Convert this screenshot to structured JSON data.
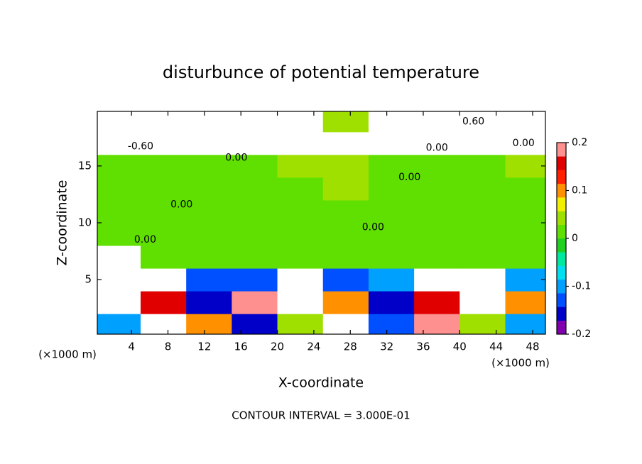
{
  "chart_data": {
    "type": "contourf",
    "title": "disturbunce of potential temperature",
    "x_label": "X-coordinate",
    "y_label": "Z-coordinate",
    "x_unit_left": "(×1000 m)",
    "x_unit_right": "(×1000 m)",
    "footnote": "CONTOUR INTERVAL = 3.000E-01",
    "xlim": [
      0.25,
      49.4
    ],
    "ylim": [
      0.2,
      19.8
    ],
    "xticks": [
      4,
      8,
      12,
      16,
      20,
      24,
      28,
      32,
      36,
      40,
      44,
      48
    ],
    "yticks": [
      5,
      10,
      15
    ],
    "x": [
      2.5,
      7.5,
      12.5,
      17.5,
      22.5,
      27.5,
      32.5,
      37.5,
      42.5,
      47.5
    ],
    "y": [
      1,
      3,
      5,
      7,
      9,
      11,
      13,
      15,
      17,
      19
    ],
    "z": [
      [
        -0.1,
        0.3,
        0.1,
        -0.15,
        0.05,
        0.3,
        -0.12,
        0.18,
        0.05,
        -0.1
      ],
      [
        -0.3,
        0.15,
        -0.15,
        0.2,
        -0.3,
        0.1,
        -0.15,
        0.15,
        -0.3,
        0.1
      ],
      [
        -0.3,
        -0.3,
        -0.12,
        -0.12,
        -0.3,
        -0.12,
        -0.1,
        -0.3,
        -0.3,
        -0.1
      ],
      [
        -0.3,
        0.0,
        0.02,
        0.02,
        0.02,
        0.02,
        0.02,
        0.0,
        0.02,
        0.02
      ],
      [
        0.02,
        0.02,
        0.02,
        0.02,
        0.02,
        0.02,
        0.02,
        0.02,
        0.02,
        0.02
      ],
      [
        0.01,
        0.02,
        0.01,
        0.02,
        0.02,
        0.01,
        0.02,
        0.02,
        0.02,
        0.01
      ],
      [
        0.02,
        0.02,
        0.02,
        0.02,
        0.02,
        0.03,
        0.02,
        0.02,
        0.02,
        0.02
      ],
      [
        0.02,
        0.02,
        0.01,
        0.02,
        0.03,
        0.05,
        0.02,
        0.02,
        0.02,
        0.03
      ],
      [
        -0.3,
        -0.3,
        -0.3,
        0.3,
        0.3,
        0.3,
        0.3,
        0.3,
        -0.3,
        -0.3
      ],
      [
        0.3,
        0.3,
        -0.3,
        0.3,
        0.3,
        0.05,
        0.3,
        0.3,
        0.3,
        0.3
      ]
    ],
    "colorbar_lim": [
      -0.2,
      0.2
    ],
    "colorbar_ticks": [
      -0.2,
      -0.1,
      0,
      0.1,
      0.2
    ],
    "colormap": [
      "#8000b0",
      "#0000c8",
      "#0050ff",
      "#00a0ff",
      "#00e0f0",
      "#00e8a0",
      "#20d020",
      "#60e000",
      "#a0e000",
      "#f0f000",
      "#ff9000",
      "#ff2000",
      "#e00000",
      "#ff9090"
    ],
    "contour_labels": [
      {
        "text": "0.00",
        "x": 15.5,
        "y": 15.7
      },
      {
        "text": "0.00",
        "x": 34.5,
        "y": 14.0
      },
      {
        "text": "0.00",
        "x": 9.5,
        "y": 11.6
      },
      {
        "text": "0.00",
        "x": 30.5,
        "y": 9.6
      },
      {
        "text": "0.00",
        "x": 5.5,
        "y": 8.5
      },
      {
        "text": "0.00",
        "x": 37.5,
        "y": 16.6
      },
      {
        "text": "-0.60",
        "x": 5.0,
        "y": 16.7
      },
      {
        "text": "0.60",
        "x": 41.5,
        "y": 18.9
      },
      {
        "text": "0.00",
        "x": 47.0,
        "y": 17.0
      }
    ]
  }
}
